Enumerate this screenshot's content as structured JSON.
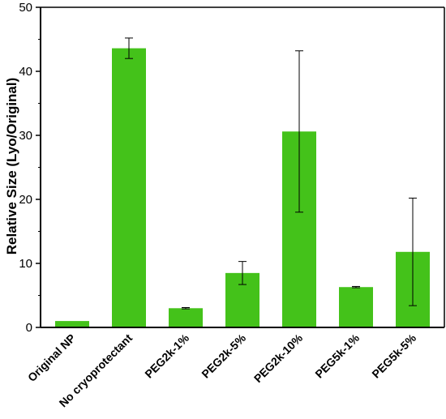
{
  "chart_data": {
    "type": "bar",
    "title": "",
    "xlabel": "",
    "ylabel": "Relative Size (Lyo/Original)",
    "ylim": [
      0,
      50
    ],
    "yticks": [
      0,
      10,
      20,
      30,
      40,
      50
    ],
    "grid": false,
    "legend": "none",
    "bar_color": "#44c21a",
    "categories": [
      "Original NP",
      "No cryoprotectant",
      "PEG2k-1%",
      "PEG2k-5%",
      "PEG2k-10%",
      "PEG5k-1%",
      "PEG5k-5%"
    ],
    "values": [
      1.0,
      43.6,
      3.0,
      8.5,
      30.6,
      6.3,
      11.8
    ],
    "errors": [
      0,
      1.6,
      0.1,
      1.8,
      12.6,
      0.1,
      8.4
    ]
  }
}
